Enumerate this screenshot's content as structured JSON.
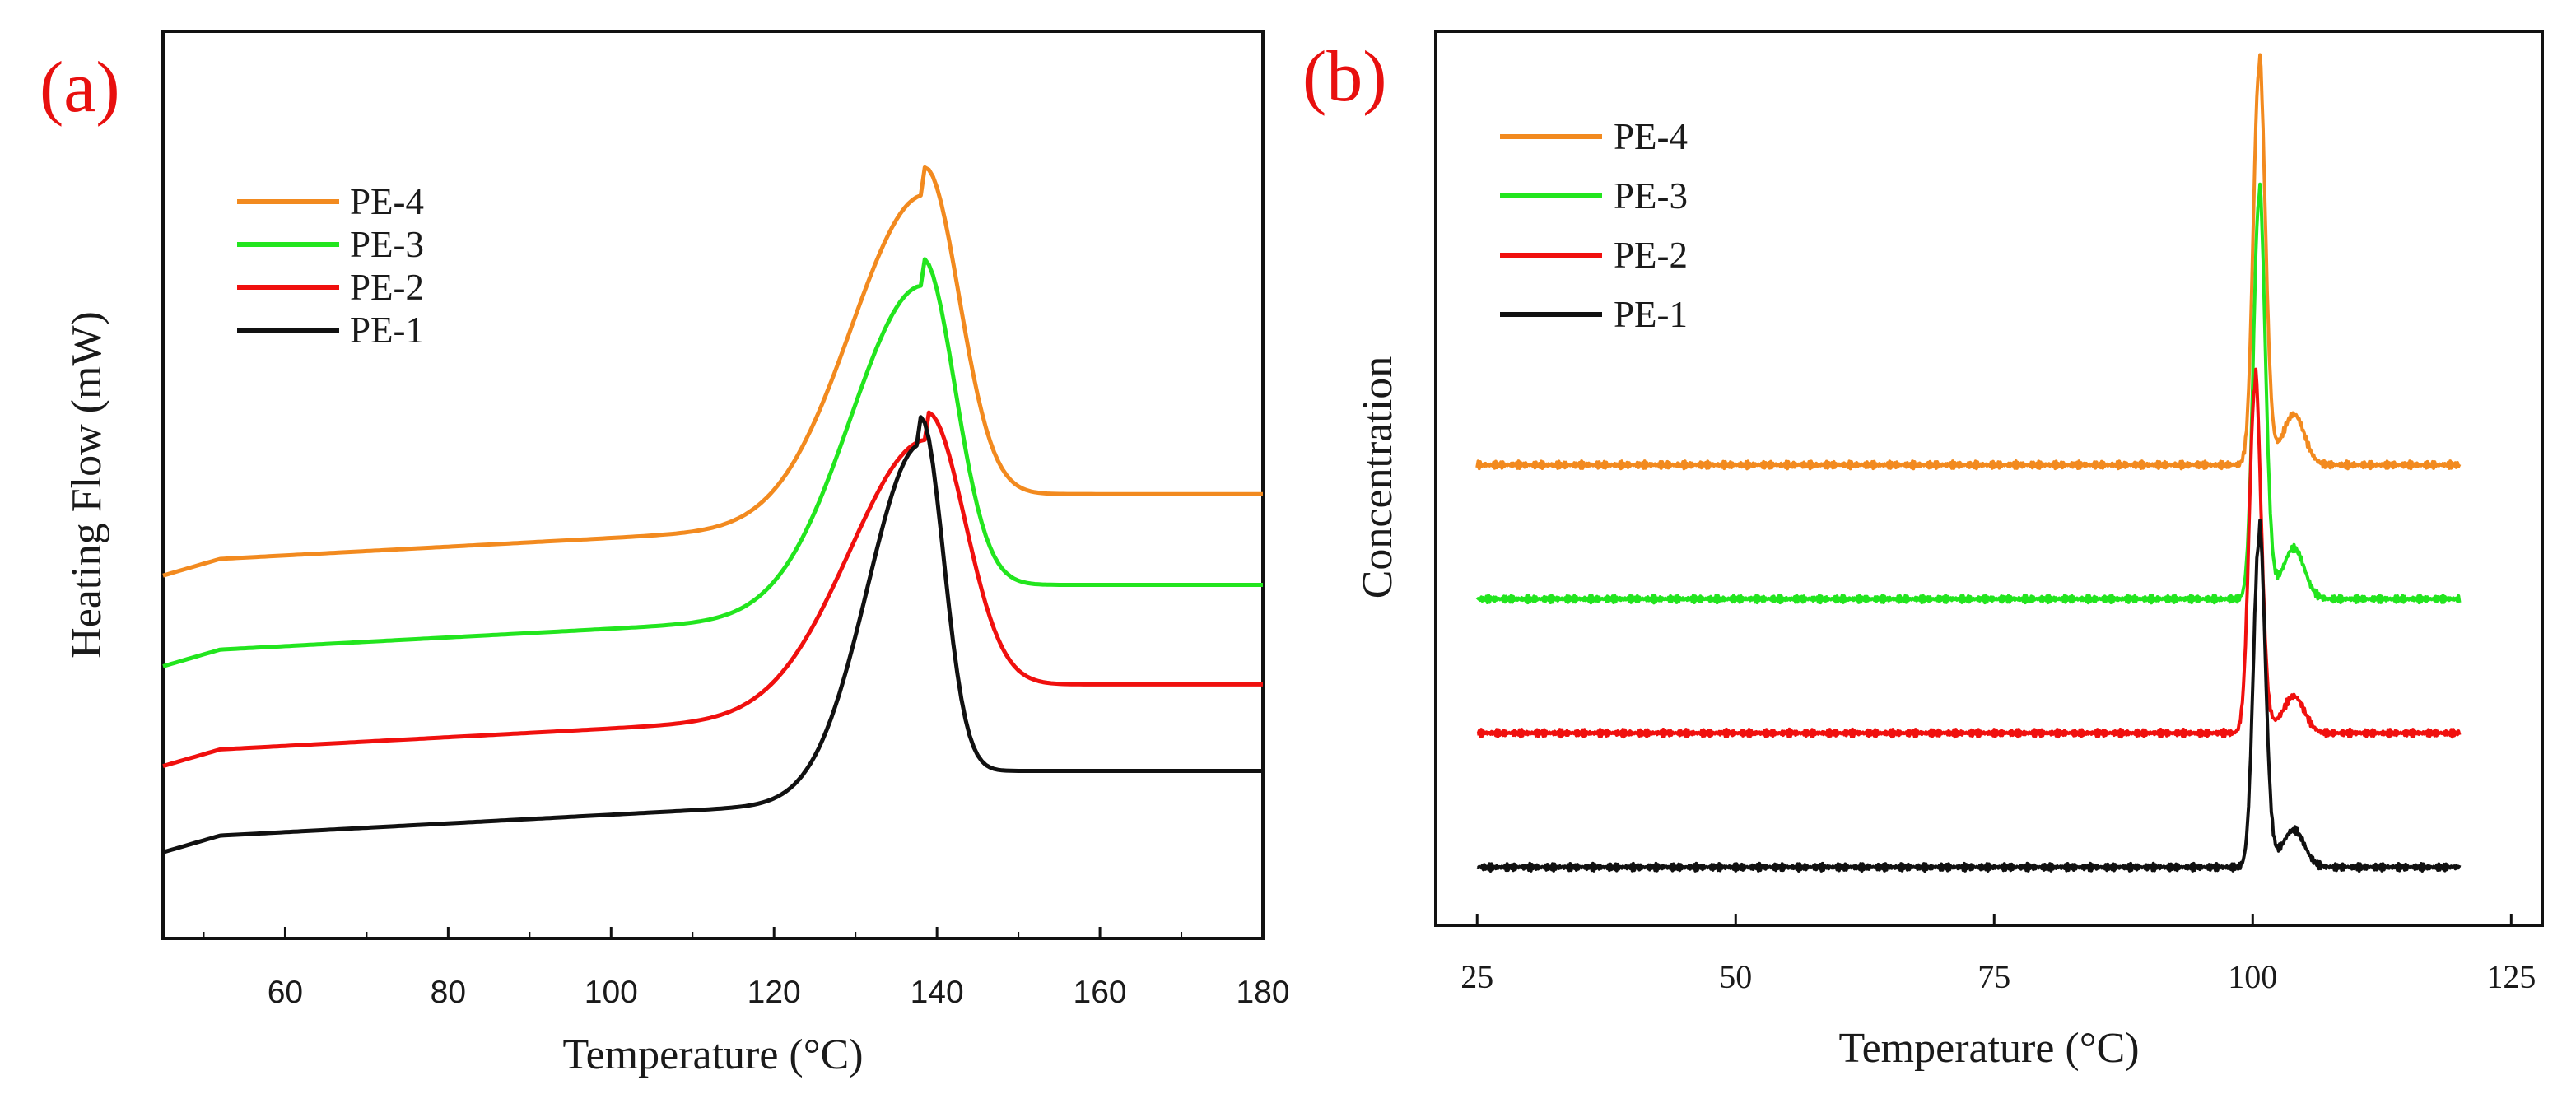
{
  "chart_data": [
    {
      "panel_label": "(a)",
      "type": "line",
      "xlabel": "Temperature (°C)",
      "ylabel": "Heating Flow (mW)",
      "xlim": [
        45,
        180
      ],
      "ylim": [
        0,
        100
      ],
      "xticks": [
        60,
        80,
        100,
        120,
        140,
        160,
        180
      ],
      "yticks_shown": false,
      "grid": false,
      "legend_position": "upper-left",
      "legend": [
        "PE-4",
        "PE-3",
        "PE-2",
        "PE-1"
      ],
      "series": [
        {
          "name": "PE-4",
          "color": "#f28a1f",
          "baseline": 41.5,
          "baseline_slope": 0.06,
          "peak_x": 138.5,
          "peak_height": 36,
          "width_left": 9.0,
          "width_right": 4.2
        },
        {
          "name": "PE-3",
          "color": "#22e51e",
          "baseline": 31.5,
          "baseline_slope": 0.06,
          "peak_x": 138.2,
          "peak_height": 36,
          "width_left": 8.8,
          "width_right": 4.0
        },
        {
          "name": "PE-2",
          "color": "#f0100e",
          "baseline": 20.5,
          "baseline_slope": 0.06,
          "peak_x": 138.8,
          "peak_height": 30,
          "width_left": 9.5,
          "width_right": 4.6
        },
        {
          "name": "PE-1",
          "color": "#111111",
          "baseline": 11.0,
          "baseline_slope": 0.06,
          "peak_x": 138.0,
          "peak_height": 39,
          "width_left": 6.5,
          "width_right": 2.8
        }
      ]
    },
    {
      "panel_label": "(b)",
      "type": "line",
      "xlabel": "Temperature (°C)",
      "ylabel": "Concentration",
      "xlim": [
        21,
        128
      ],
      "ylim": [
        0,
        100
      ],
      "xticks": [
        25,
        50,
        75,
        100,
        125
      ],
      "yticks_shown": false,
      "grid": false,
      "legend_position": "upper-left",
      "legend": [
        "PE-4",
        "PE-3",
        "PE-2",
        "PE-1"
      ],
      "series": [
        {
          "name": "PE-4",
          "color": "#f28a1f",
          "x_start": 25,
          "x_end": 120,
          "baseline": 51.5,
          "peak_x": 100.6,
          "peak_height": 44,
          "shoulder_x": 104,
          "shoulder_height": 5.5
        },
        {
          "name": "PE-3",
          "color": "#22e51e",
          "x_start": 25,
          "x_end": 120,
          "baseline": 36.5,
          "peak_x": 100.6,
          "peak_height": 44.5,
          "shoulder_x": 104,
          "shoulder_height": 5.5
        },
        {
          "name": "PE-2",
          "color": "#f0100e",
          "x_start": 25,
          "x_end": 120,
          "baseline": 21.5,
          "peak_x": 100.2,
          "peak_height": 38.5,
          "shoulder_x": 104,
          "shoulder_height": 4.0
        },
        {
          "name": "PE-1",
          "color": "#111111",
          "x_start": 25,
          "x_end": 120,
          "baseline": 6.5,
          "peak_x": 100.6,
          "peak_height": 36.5,
          "shoulder_x": 104,
          "shoulder_height": 4.0
        }
      ]
    }
  ]
}
